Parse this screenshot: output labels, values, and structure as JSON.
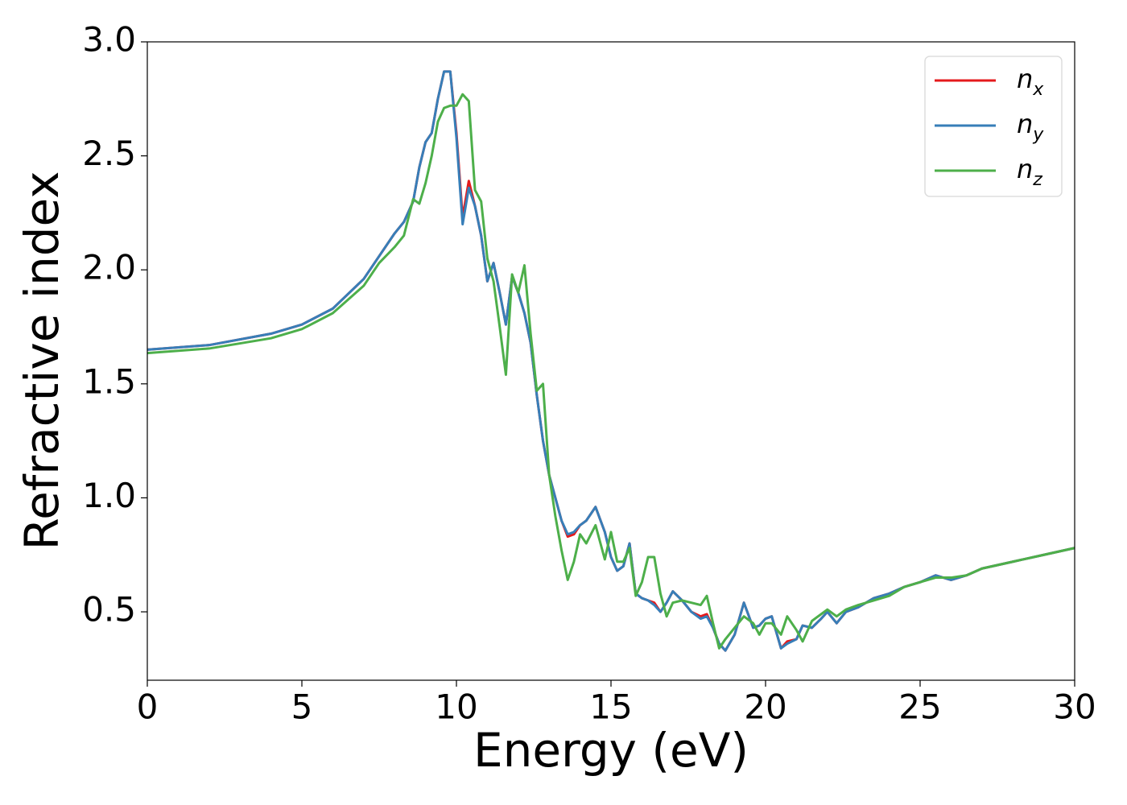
{
  "chart_data": {
    "type": "line",
    "x_label": "Energy (eV)",
    "y_label": "Refractive index",
    "x": [
      0,
      2,
      4,
      5,
      6,
      7,
      7.5,
      8,
      8.3,
      8.6,
      8.8,
      9,
      9.2,
      9.4,
      9.6,
      9.8,
      10,
      10.2,
      10.4,
      10.6,
      10.8,
      11,
      11.2,
      11.4,
      11.6,
      11.8,
      12,
      12.2,
      12.4,
      12.6,
      12.8,
      13,
      13.2,
      13.4,
      13.6,
      13.8,
      14,
      14.2,
      14.5,
      14.8,
      15,
      15.2,
      15.4,
      15.6,
      15.8,
      16,
      16.2,
      16.4,
      16.6,
      16.8,
      17,
      17.3,
      17.6,
      17.9,
      18.1,
      18.3,
      18.5,
      18.7,
      19,
      19.3,
      19.6,
      19.8,
      20,
      20.2,
      20.5,
      20.7,
      21,
      21.2,
      21.5,
      21.8,
      22,
      22.3,
      22.6,
      23,
      23.5,
      24,
      24.5,
      25,
      25.5,
      26,
      26.5,
      27,
      28,
      29,
      30
    ],
    "series": [
      {
        "name": "nx",
        "color": "#e41a1c",
        "values": [
          1.65,
          1.67,
          1.72,
          1.76,
          1.83,
          1.96,
          2.06,
          2.16,
          2.21,
          2.3,
          2.45,
          2.56,
          2.6,
          2.75,
          2.87,
          2.87,
          2.6,
          2.23,
          2.39,
          2.28,
          2.15,
          1.95,
          2.03,
          1.9,
          1.76,
          1.97,
          1.9,
          1.81,
          1.68,
          1.45,
          1.25,
          1.1,
          1.0,
          0.9,
          0.83,
          0.84,
          0.88,
          0.9,
          0.96,
          0.85,
          0.74,
          0.68,
          0.7,
          0.8,
          0.58,
          0.56,
          0.55,
          0.54,
          0.5,
          0.54,
          0.59,
          0.55,
          0.5,
          0.48,
          0.49,
          0.43,
          0.36,
          0.33,
          0.4,
          0.54,
          0.43,
          0.44,
          0.47,
          0.48,
          0.34,
          0.37,
          0.38,
          0.44,
          0.43,
          0.47,
          0.5,
          0.45,
          0.5,
          0.52,
          0.56,
          0.58,
          0.61,
          0.63,
          0.66,
          0.64,
          0.66,
          0.69,
          0.72,
          0.75,
          0.78
        ]
      },
      {
        "name": "ny",
        "color": "#377eb8",
        "values": [
          1.65,
          1.67,
          1.72,
          1.76,
          1.83,
          1.96,
          2.06,
          2.16,
          2.21,
          2.3,
          2.45,
          2.56,
          2.6,
          2.75,
          2.87,
          2.87,
          2.58,
          2.2,
          2.36,
          2.28,
          2.15,
          1.95,
          2.03,
          1.9,
          1.76,
          1.97,
          1.9,
          1.81,
          1.68,
          1.45,
          1.25,
          1.1,
          1.0,
          0.9,
          0.84,
          0.85,
          0.88,
          0.9,
          0.96,
          0.85,
          0.74,
          0.68,
          0.7,
          0.8,
          0.58,
          0.56,
          0.55,
          0.53,
          0.5,
          0.54,
          0.59,
          0.55,
          0.5,
          0.47,
          0.48,
          0.43,
          0.36,
          0.33,
          0.4,
          0.54,
          0.43,
          0.44,
          0.47,
          0.48,
          0.34,
          0.36,
          0.38,
          0.44,
          0.43,
          0.47,
          0.5,
          0.45,
          0.5,
          0.52,
          0.56,
          0.58,
          0.61,
          0.63,
          0.66,
          0.64,
          0.66,
          0.69,
          0.72,
          0.75,
          0.78
        ]
      },
      {
        "name": "nz",
        "color": "#4daf4a",
        "values": [
          1.635,
          1.655,
          1.7,
          1.74,
          1.81,
          1.93,
          2.03,
          2.1,
          2.15,
          2.31,
          2.29,
          2.38,
          2.5,
          2.65,
          2.71,
          2.72,
          2.72,
          2.77,
          2.74,
          2.35,
          2.3,
          2.05,
          1.95,
          1.75,
          1.54,
          1.98,
          1.9,
          2.02,
          1.72,
          1.47,
          1.5,
          1.1,
          0.92,
          0.77,
          0.64,
          0.72,
          0.84,
          0.8,
          0.88,
          0.73,
          0.85,
          0.72,
          0.72,
          0.78,
          0.57,
          0.63,
          0.74,
          0.74,
          0.58,
          0.48,
          0.54,
          0.55,
          0.54,
          0.53,
          0.57,
          0.45,
          0.34,
          0.38,
          0.43,
          0.48,
          0.45,
          0.4,
          0.45,
          0.45,
          0.4,
          0.48,
          0.42,
          0.37,
          0.46,
          0.49,
          0.51,
          0.48,
          0.51,
          0.53,
          0.55,
          0.57,
          0.61,
          0.63,
          0.65,
          0.65,
          0.66,
          0.69,
          0.72,
          0.75,
          0.78
        ]
      }
    ],
    "xlim": [
      0,
      30
    ],
    "xticks": [
      0,
      5,
      10,
      15,
      20,
      25,
      30
    ],
    "ylim": [
      0.2,
      3.0
    ],
    "yticks": [
      0.5,
      {
        "value": 1,
        "label": "1.0"
      },
      1.5,
      {
        "value": 2,
        "label": "2.0"
      },
      2.5,
      {
        "value": 3,
        "label": "3.0"
      }
    ],
    "grid": false,
    "legend": "upper-right"
  }
}
